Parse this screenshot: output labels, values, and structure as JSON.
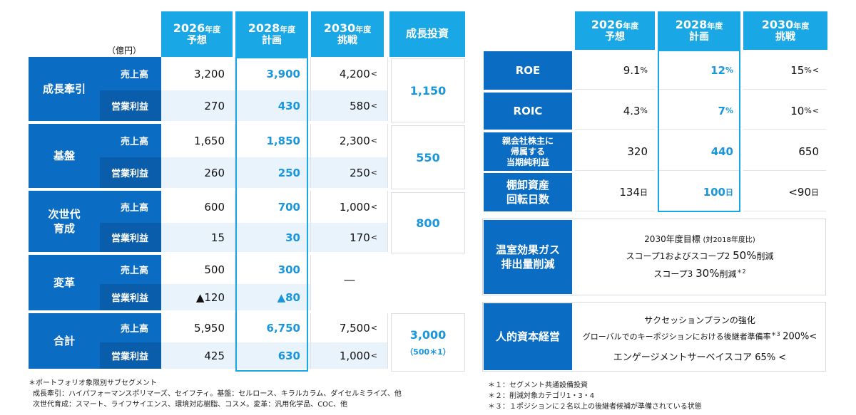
{
  "left": {
    "unit_label": "（億円）",
    "headers": [
      {
        "year": "2026",
        "suffix": "年度",
        "label": "予想"
      },
      {
        "year": "2028",
        "suffix": "年度",
        "label": "計画"
      },
      {
        "year": "2030",
        "suffix": "年度",
        "label": "挑戦"
      }
    ],
    "growth_header": "成長投資",
    "sales_label": "売上高",
    "op_label": "営業利益",
    "segments": [
      {
        "name": "成長牽引",
        "sales": [
          "3,200",
          "3,900",
          "4,200"
        ],
        "sales_lt": [
          false,
          false,
          true
        ],
        "op": [
          "270",
          "430",
          "580"
        ],
        "op_lt": [
          false,
          false,
          true
        ],
        "growth": "1,150"
      },
      {
        "name": "基盤",
        "sales": [
          "1,650",
          "1,850",
          "2,300"
        ],
        "sales_lt": [
          false,
          false,
          true
        ],
        "op": [
          "260",
          "250",
          "250"
        ],
        "op_lt": [
          false,
          false,
          true
        ],
        "growth": "550"
      },
      {
        "name": "次世代\n育成",
        "sales": [
          "600",
          "700",
          "1,000"
        ],
        "sales_lt": [
          false,
          false,
          true
        ],
        "op": [
          "15",
          "30",
          "170"
        ],
        "op_lt": [
          false,
          false,
          true
        ],
        "growth": "800"
      },
      {
        "name": "変革",
        "sales": [
          "500",
          "300",
          ""
        ],
        "sales_lt": [
          false,
          false,
          false
        ],
        "op": [
          "▲120",
          "▲80",
          ""
        ],
        "op_lt": [
          false,
          false,
          false
        ],
        "dash": "―"
      },
      {
        "name": "合計",
        "sales": [
          "5,950",
          "6,750",
          "7,500"
        ],
        "sales_lt": [
          false,
          false,
          true
        ],
        "op": [
          "425",
          "630",
          "1,000"
        ],
        "op_lt": [
          false,
          false,
          true
        ],
        "growth": "3,000",
        "growth_sub": "（500＊1）"
      }
    ],
    "lt_symbol": "<",
    "footnotes": [
      "＊ポートフォリオ象限別サブセグメント",
      "成長牽引：ハイパフォーマンスポリマーズ、セイフティ。基盤：セルロース、キラルカラム、ダイセルミライズ、他",
      "次世代育成：スマート、ライフサイエンス、環境対応樹脂、コスメ。変革：汎用化学品、COC、他"
    ]
  },
  "right": {
    "headers": [
      {
        "year": "2026",
        "suffix": "年度",
        "label": "予想"
      },
      {
        "year": "2028",
        "suffix": "年度",
        "label": "計画"
      },
      {
        "year": "2030",
        "suffix": "年度",
        "label": "挑戦"
      }
    ],
    "metrics": [
      {
        "label": "ROE",
        "values": [
          "9.1",
          "12",
          "15"
        ],
        "unit": "%",
        "last_lt": true
      },
      {
        "label": "ROIC",
        "values": [
          "4.3",
          "7",
          "10"
        ],
        "unit": "%",
        "last_lt": true
      },
      {
        "label": "親会社株主に\n帰属する\n当期純利益",
        "values": [
          "320",
          "440",
          "650"
        ],
        "unit": "",
        "last_lt": false
      },
      {
        "label": "棚卸資産\n回転日数",
        "values": [
          "134",
          "100",
          "<90"
        ],
        "unit": "日",
        "last_lt": false
      }
    ],
    "lt_symbol": "<",
    "ghg": {
      "label": "温室効果ガス\n排出量削減",
      "line1": "2030年度目標",
      "line1_sub": "(対2018年度比)",
      "line2_pre": "スコープ1およびスコープ2 ",
      "line2_big": "50%",
      "line2_post": "削減",
      "line3_pre": "スコープ3 ",
      "line3_big": "30%",
      "line3_post": "削減",
      "line3_sup": "＊2"
    },
    "hr": {
      "label": "人的資本経営",
      "line1": "サクセッションプランの強化",
      "line2": "グローバルでのキーポジションにおける後継者準備率",
      "line2_sup": "＊3",
      "line2_val": "200%<",
      "line3": "エンゲージメントサーベイスコア 65% <"
    },
    "footnotes": [
      "＊１：セグメント共通設備投資",
      "＊２：削減対象カテゴリ1・3・4",
      "＊３：１ポジションに２名以上の後継者候補が準備されている状態"
    ]
  }
}
